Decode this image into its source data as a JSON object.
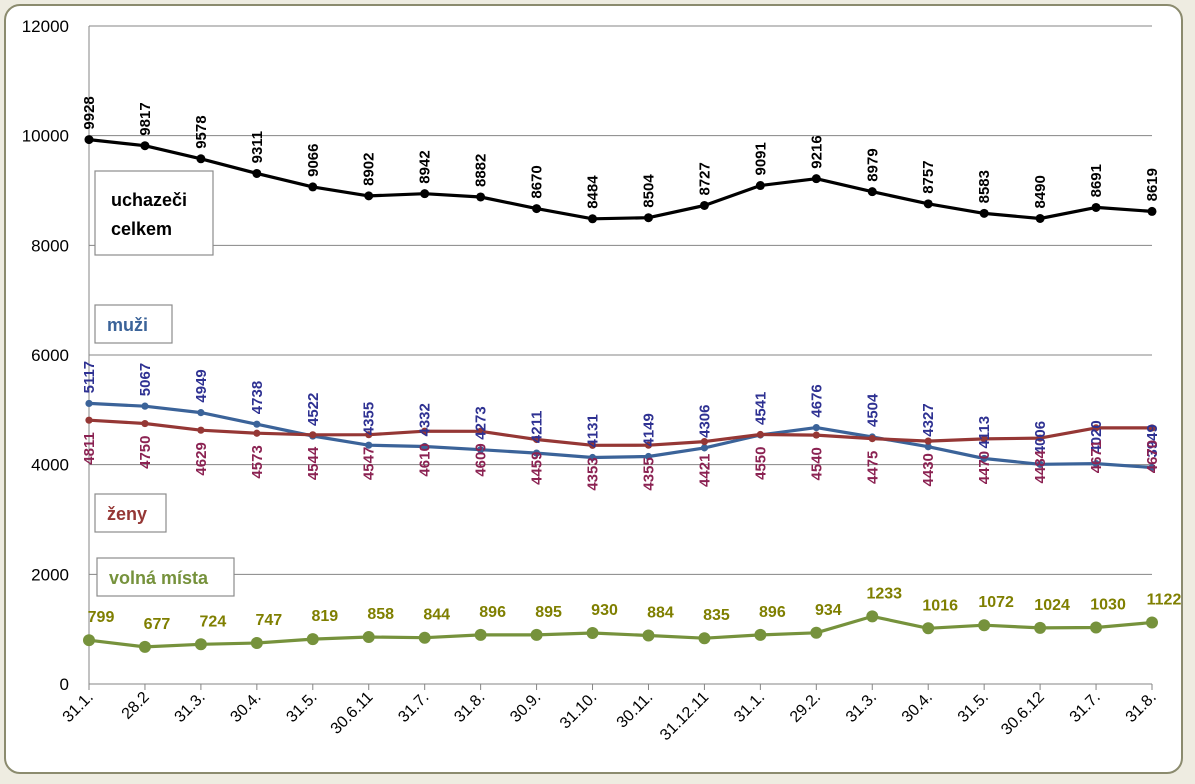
{
  "chart_data": {
    "type": "line",
    "title": "",
    "xlabel": "",
    "ylabel": "",
    "ylim": [
      0,
      12000
    ],
    "yticks": [
      0,
      2000,
      4000,
      6000,
      8000,
      10000,
      12000
    ],
    "grid": true,
    "categories": [
      "31.1.",
      "28.2",
      "31.3.",
      "30.4.",
      "31.5.",
      "30.6.11",
      "31.7.",
      "31.8.",
      "30.9.",
      "31.10.",
      "30.11.",
      "31.12.11",
      "31.1.",
      "29.2.",
      "31.3.",
      "30.4.",
      "31.5.",
      "30.6.12",
      "31.7.",
      "31.8."
    ],
    "series": [
      {
        "name": "uchazeči celkem",
        "color": "#000000",
        "values": [
          9928,
          9817,
          9578,
          9311,
          9066,
          8902,
          8942,
          8882,
          8670,
          8484,
          8504,
          8727,
          9091,
          9216,
          8979,
          8757,
          8583,
          8490,
          8691,
          8619
        ]
      },
      {
        "name": "muži",
        "color": "#3b6399",
        "label_color": "#2e3192",
        "values": [
          5117,
          5067,
          4949,
          4738,
          4522,
          4355,
          4332,
          4273,
          4211,
          4131,
          4149,
          4306,
          4541,
          4676,
          4504,
          4327,
          4113,
          4006,
          4020,
          3949
        ]
      },
      {
        "name": "ženy",
        "color": "#953735",
        "label_color": "#8b2252",
        "values": [
          4811,
          4750,
          4629,
          4573,
          4544,
          4547,
          4610,
          4609,
          4459,
          4353,
          4355,
          4421,
          4550,
          4540,
          4475,
          4430,
          4470,
          4484,
          4671,
          4670
        ]
      },
      {
        "name": "volná místa",
        "color": "#76923c",
        "label_color": "#7f7f00",
        "values": [
          799,
          677,
          724,
          747,
          819,
          858,
          844,
          896,
          895,
          930,
          884,
          835,
          896,
          934,
          1233,
          1016,
          1072,
          1024,
          1030,
          1122
        ]
      }
    ],
    "legend": [
      {
        "line1": "uchazeči",
        "line2": "celkem",
        "color": "#000000"
      },
      {
        "line1": "muži",
        "color": "#3b6399"
      },
      {
        "line1": "ženy",
        "color": "#953735"
      },
      {
        "line1": "volná místa",
        "color": "#76923c"
      }
    ]
  }
}
